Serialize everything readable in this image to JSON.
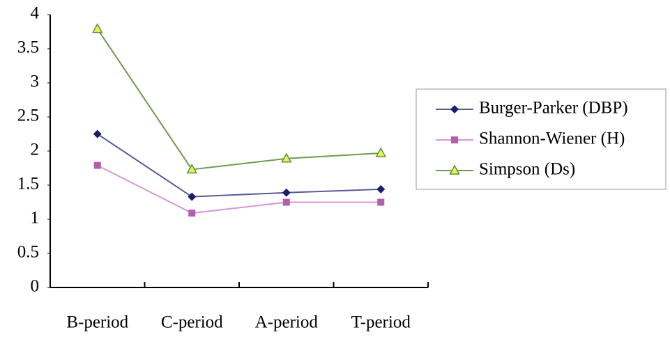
{
  "chart_data": {
    "type": "line",
    "categories": [
      "B-period",
      "C-period",
      "A-period",
      "T-period"
    ],
    "series": [
      {
        "name": "Burger-Parker (DBP)",
        "color": "#1c1c6b",
        "line_color": "#5b5b95",
        "marker": "diamond",
        "values": [
          2.25,
          1.33,
          1.39,
          1.44
        ]
      },
      {
        "name": "Shannon-Wiener (H)",
        "color": "#b35fae",
        "line_color": "#d49ad0",
        "marker": "square",
        "values": [
          1.79,
          1.09,
          1.25,
          1.25
        ]
      },
      {
        "name": "Simpson (Ds)",
        "color": "#5f8f3c",
        "line_color": "#6e9a4d",
        "marker": "triangle",
        "marker_fill": "#e6f25c",
        "values": [
          3.79,
          1.73,
          1.89,
          1.97
        ]
      }
    ],
    "ylim": [
      0,
      4
    ],
    "yticks": [
      0,
      0.5,
      1,
      1.5,
      2,
      2.5,
      3,
      3.5,
      4
    ],
    "legend": "right"
  }
}
